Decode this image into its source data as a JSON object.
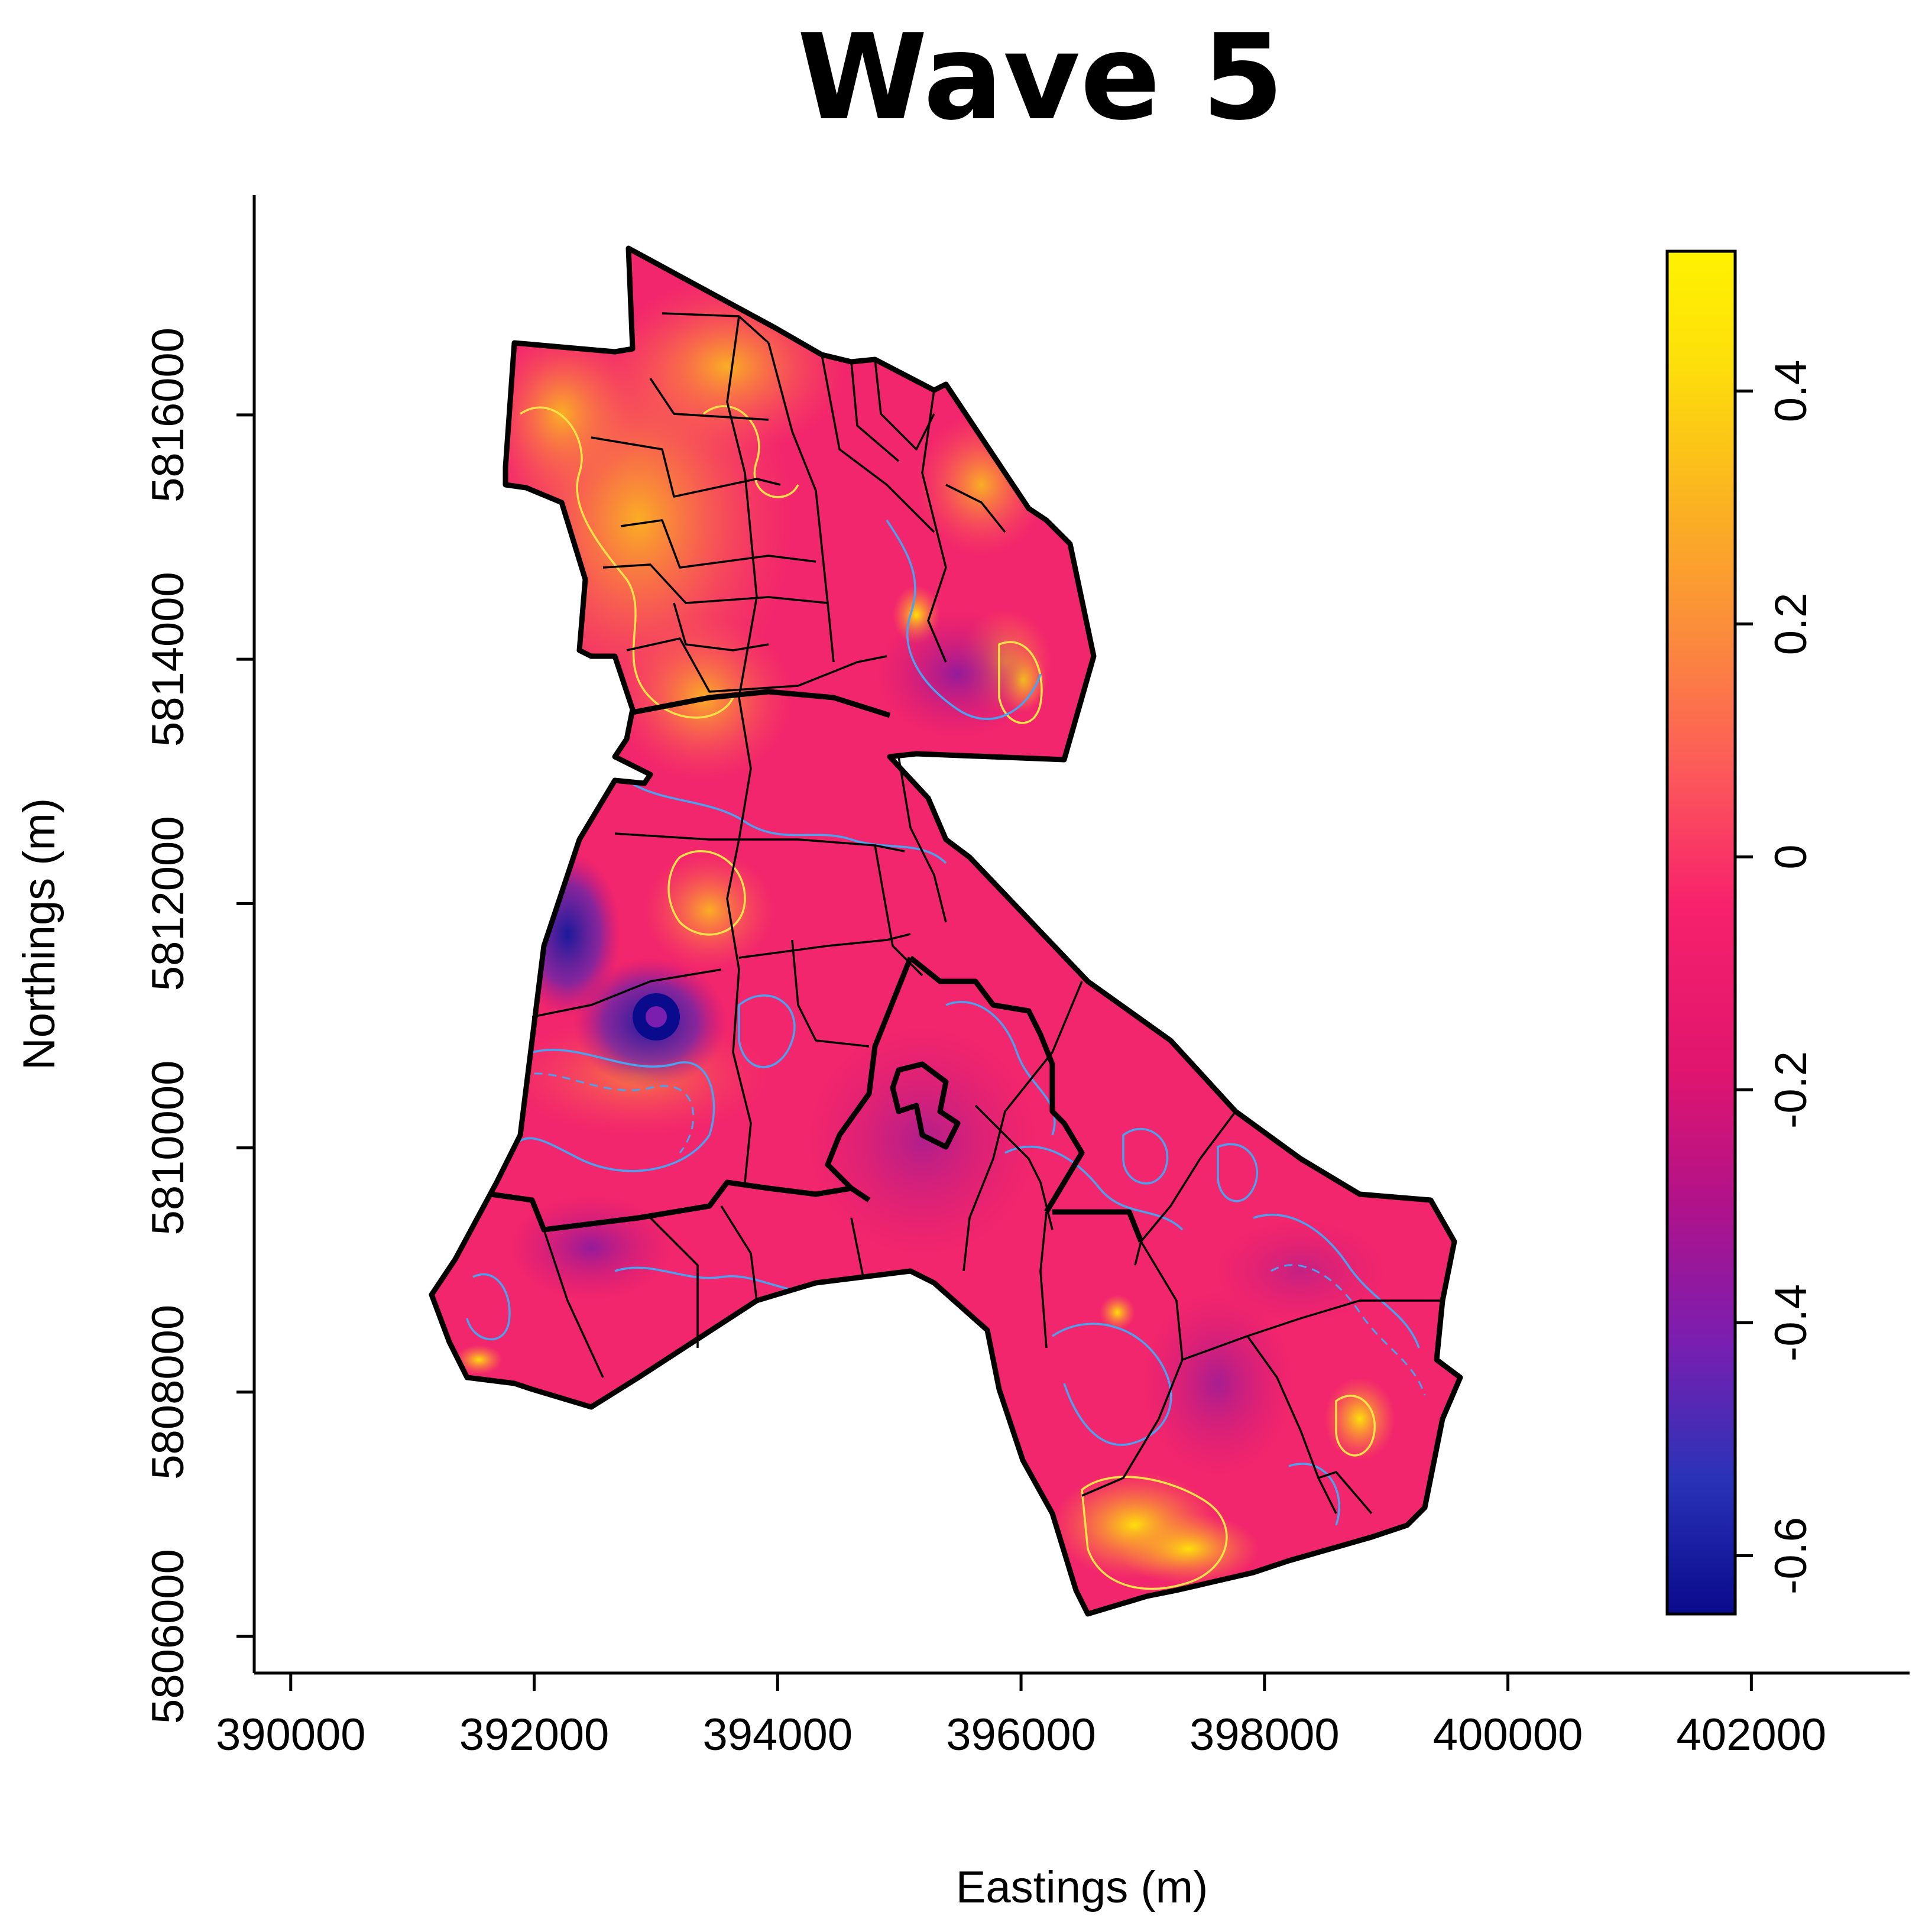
{
  "title": "Wave 5",
  "chart_data": {
    "type": "heatmap",
    "title": "Wave 5",
    "xlabel": "Eastings (m)",
    "ylabel": "Northings (m)",
    "x_ticks": [
      390000,
      392000,
      394000,
      396000,
      398000,
      400000,
      402000
    ],
    "y_ticks": [
      5806000,
      5808000,
      5810000,
      5812000,
      5814000,
      5816000
    ],
    "xlim": [
      389700,
      403300
    ],
    "ylim": [
      5805700,
      5817800
    ],
    "colorbar": {
      "range": [
        -0.65,
        0.52
      ],
      "ticks": [
        "0.4",
        "0.2",
        "0",
        "-0.2",
        "-0.4",
        "-0.6"
      ],
      "tick_values": [
        0.4,
        0.2,
        0,
        -0.2,
        -0.4,
        -0.6
      ],
      "palette": [
        "#0a0a8c",
        "#2a33b8",
        "#7a1eb0",
        "#b0128a",
        "#e0156e",
        "#f7216c",
        "#fc5a5a",
        "#fb8c3c",
        "#fbb520",
        "#fde00a",
        "#fff200"
      ],
      "legend_position": "right"
    },
    "legend": "colorbar-right",
    "grid": false
  },
  "colors": {
    "low": "#0a0a8c",
    "neutral": "#f7216c",
    "high": "#fff200",
    "contour_negative": "#4aa3f0",
    "contour_positive": "#ffe24a",
    "boundary": "#000000"
  }
}
